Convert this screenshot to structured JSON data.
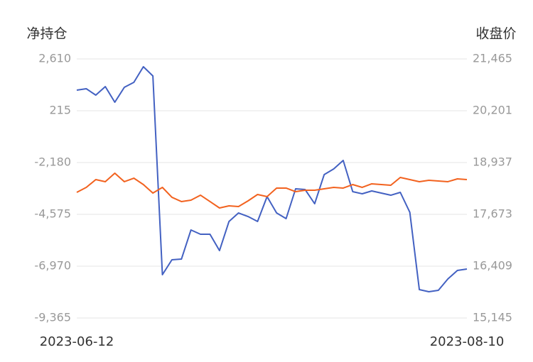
{
  "chart_data": {
    "type": "line",
    "y_label": "净持仓",
    "y2_label": "收盘价",
    "categories": [
      "2023-06-12",
      null,
      null,
      null,
      null,
      null,
      null,
      null,
      null,
      null,
      null,
      null,
      null,
      null,
      null,
      null,
      null,
      null,
      null,
      null,
      null,
      null,
      null,
      null,
      null,
      null,
      null,
      null,
      null,
      null,
      null,
      null,
      null,
      null,
      null,
      null,
      null,
      null,
      null,
      null,
      null,
      "2023-08-10"
    ],
    "series": [
      {
        "color": "#4361c2",
        "values": [
          1166,
          1232,
          937,
          1330,
          609,
          1298,
          1527,
          2249,
          1823,
          -7364,
          -6675,
          -6642,
          -5297,
          -5494,
          -5494,
          -6249,
          -4903,
          -4510,
          -4674,
          -4903,
          -3755,
          -4510,
          -4772,
          -3394,
          -3427,
          -4083,
          -2738,
          -2476,
          -2082,
          -3525,
          -3624,
          -3493,
          -3591,
          -3690,
          -3558,
          -4477,
          -8053,
          -8152,
          -8086,
          -7561,
          -7167,
          -7102
        ]
      },
      {
        "color": "#f2621f",
        "axis": "y2",
        "values": [
          18210,
          18331,
          18521,
          18470,
          18677,
          18470,
          18556,
          18400,
          18192,
          18331,
          18089,
          17985,
          18019,
          18141,
          17985,
          17829,
          17881,
          17863,
          18002,
          18158,
          18106,
          18314,
          18314,
          18227,
          18262,
          18262,
          18296,
          18331,
          18314,
          18400,
          18331,
          18418,
          18400,
          18383,
          18573,
          18521,
          18470,
          18504,
          18487,
          18470,
          18539,
          18521
        ]
      }
    ],
    "ylim": [
      -9365,
      2610
    ],
    "yticks": [
      {
        "value": 2610,
        "label": "2,610"
      },
      215,
      {
        "value": -2180,
        "label": "-2,180"
      },
      {
        "value": -4575,
        "label": "-4,575"
      },
      {
        "value": -6970,
        "label": "-6,970"
      },
      {
        "value": -9365,
        "label": "-9,365"
      }
    ],
    "y2lim": [
      15145,
      21465
    ],
    "y2ticks": [
      {
        "value": 21465,
        "label": "21,465"
      },
      {
        "value": 20201,
        "label": "20,201"
      },
      {
        "value": 18937,
        "label": "18,937"
      },
      {
        "value": 17673,
        "label": "17,673"
      },
      {
        "value": 16409,
        "label": "16,409"
      },
      {
        "value": 15145,
        "label": "15,145"
      }
    ],
    "grid": true
  }
}
